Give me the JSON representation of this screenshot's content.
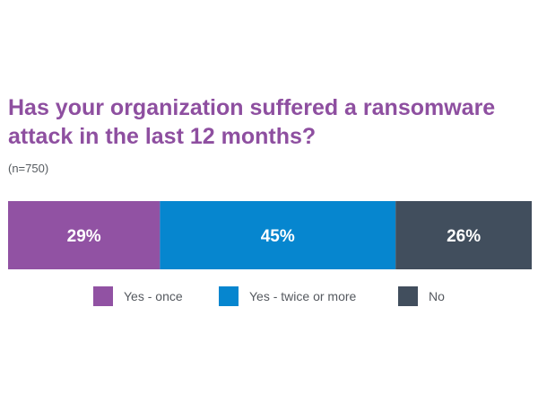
{
  "title": "Has your organization suffered a ransomware attack in the last 12 months?",
  "subtitle": "(n=750)",
  "colors": {
    "title": "#8e4fa0",
    "label": "#ffffff"
  },
  "chart_data": {
    "type": "bar",
    "orientation": "horizontal-stacked-100",
    "title": "Has your organization suffered a ransomware attack in the last 12 months?",
    "subtitle": "(n=750)",
    "series": [
      {
        "name": "Yes - once",
        "value": 29,
        "label": "29%",
        "color": "#9152a3"
      },
      {
        "name": "Yes - twice or more",
        "value": 45,
        "label": "45%",
        "color": "#0686cf"
      },
      {
        "name": "No",
        "value": 26,
        "label": "26%",
        "color": "#414e5d"
      }
    ],
    "legend_position": "bottom",
    "grid": false
  }
}
